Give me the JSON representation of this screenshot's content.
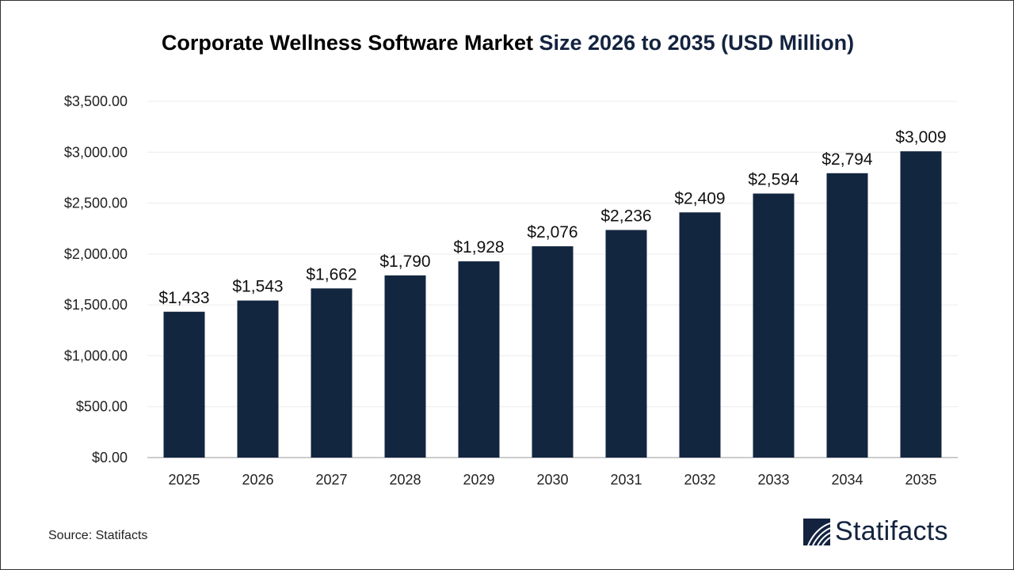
{
  "chart_data": {
    "type": "bar",
    "title_part1": "Corporate Wellness Software Market",
    "title_part2": "Size 2026 to 2035 (USD Million)",
    "categories": [
      "2025",
      "2026",
      "2027",
      "2028",
      "2029",
      "2030",
      "2031",
      "2032",
      "2033",
      "2034",
      "2035"
    ],
    "values": [
      1433,
      1543,
      1662,
      1790,
      1928,
      2076,
      2236,
      2409,
      2594,
      2794,
      3009
    ],
    "data_labels": [
      "$1,433",
      "$1,543",
      "$1,662",
      "$1,790",
      "$1,928",
      "$2,076",
      "$2,236",
      "$2,409",
      "$2,594",
      "$2,794",
      "$3,009"
    ],
    "yticks": [
      0,
      500,
      1000,
      1500,
      2000,
      2500,
      3000,
      3500
    ],
    "ytick_labels": [
      "$0.00",
      "$500.00",
      "$1,000.00",
      "$1,500.00",
      "$2,000.00",
      "$2,500.00",
      "$3,000.00",
      "$3,500.00"
    ],
    "ylim": [
      0,
      3500
    ],
    "grid": true,
    "legend": "none",
    "bar_color": "#13263f",
    "xlabel": "",
    "ylabel": ""
  },
  "footer": {
    "source": "Source: Statifacts"
  },
  "logo": {
    "text": "Statifacts",
    "color": "#13233f"
  }
}
